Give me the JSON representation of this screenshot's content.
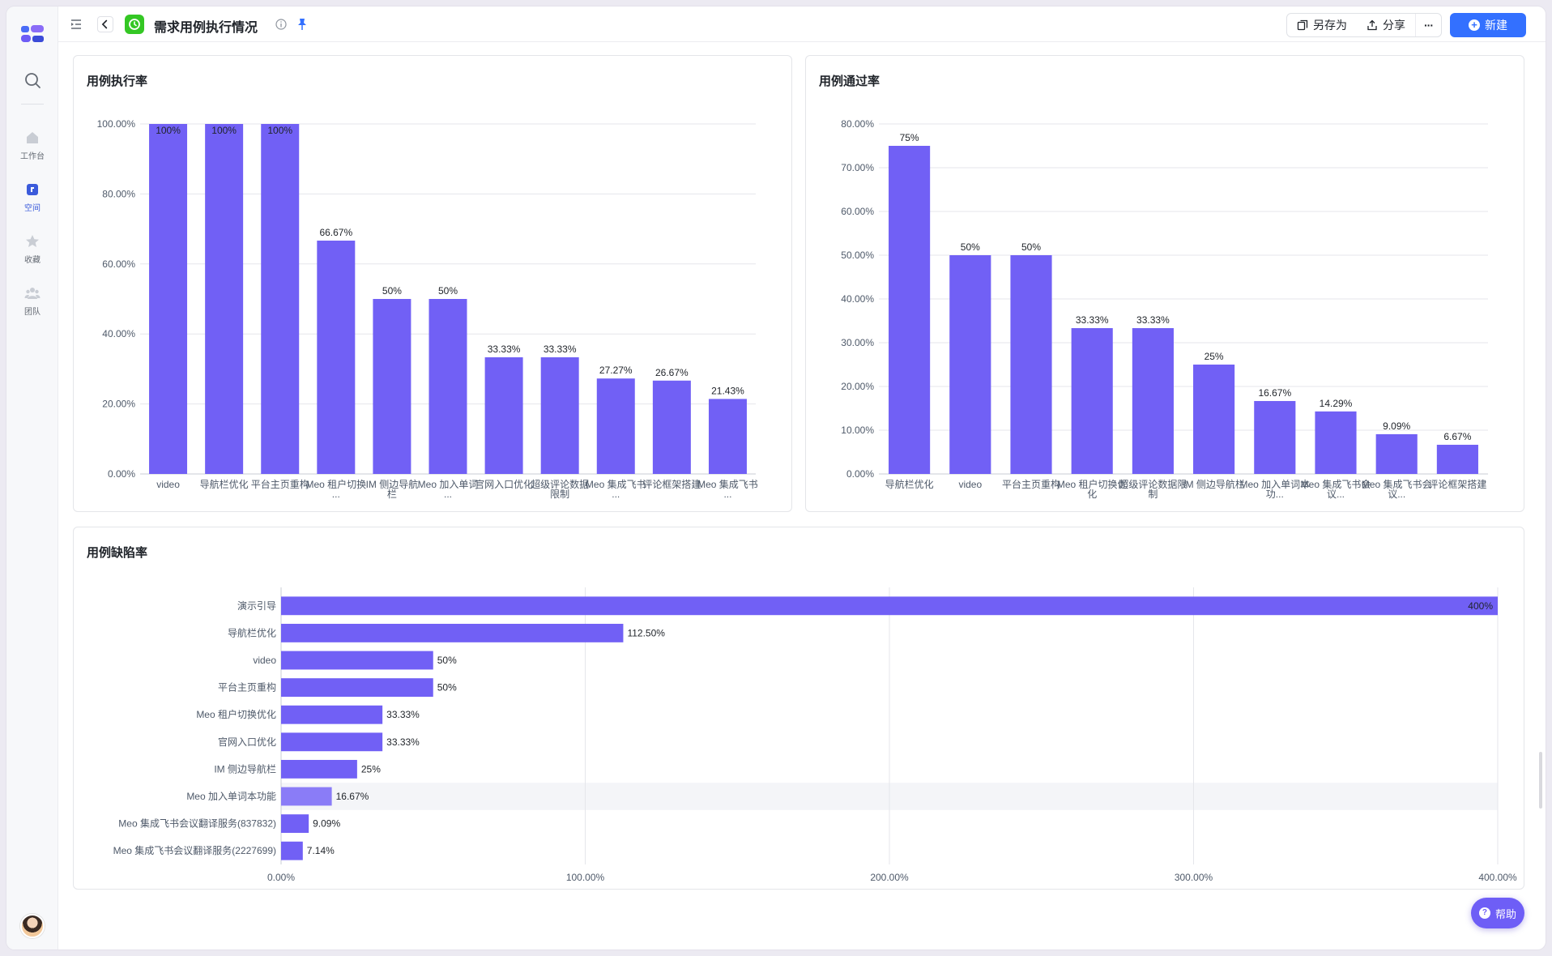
{
  "sidebar": {
    "items": [
      {
        "label": "工作台",
        "icon": "home-icon"
      },
      {
        "label": "空间",
        "icon": "space-icon"
      },
      {
        "label": "收藏",
        "icon": "star-icon"
      },
      {
        "label": "团队",
        "icon": "team-icon"
      }
    ]
  },
  "header": {
    "title": "需求用例执行情况",
    "save_as": "另存为",
    "share": "分享",
    "more": "···",
    "new": "新建"
  },
  "help_label": "帮助",
  "colors": {
    "bar": "#7160f5",
    "bar_hover": "#8a7cf7",
    "accent": "#3370ff",
    "app_icon": "#34c724"
  },
  "chart_data": [
    {
      "type": "bar",
      "title": "用例执行率",
      "categories": [
        "video",
        "导航栏优化",
        "平台主页重构",
        "Meo 租户切换...",
        "IM 侧边导航栏",
        "Meo 加入单词...",
        "官网入口优化",
        "超级评论数据限制",
        "Meo 集成飞书...",
        "评论框架搭建",
        "Meo 集成飞书..."
      ],
      "values": [
        100,
        100,
        100,
        66.67,
        50,
        50,
        33.33,
        33.33,
        27.27,
        26.67,
        21.43
      ],
      "value_labels": [
        "100%",
        "100%",
        "100%",
        "66.67%",
        "50%",
        "50%",
        "33.33%",
        "33.33%",
        "27.27%",
        "26.67%",
        "21.43%"
      ],
      "y_ticks": [
        "0.00%",
        "20.00%",
        "40.00%",
        "60.00%",
        "80.00%",
        "100.00%"
      ],
      "ylim": [
        0,
        100
      ],
      "grid": true
    },
    {
      "type": "bar",
      "title": "用例通过率",
      "categories": [
        "导航栏优化",
        "video",
        "平台主页重构",
        "Meo 租户切换优化",
        "超级评论数据限制",
        "IM 侧边导航栏",
        "Meo 加入单词本功...",
        "Meo 集成飞书会议...",
        "Meo 集成飞书会议...",
        "评论框架搭建"
      ],
      "values": [
        75,
        50,
        50,
        33.33,
        33.33,
        25,
        16.67,
        14.29,
        9.09,
        6.67
      ],
      "value_labels": [
        "75%",
        "50%",
        "50%",
        "33.33%",
        "33.33%",
        "25%",
        "16.67%",
        "14.29%",
        "9.09%",
        "6.67%"
      ],
      "y_ticks": [
        "0.00%",
        "10.00%",
        "20.00%",
        "30.00%",
        "40.00%",
        "50.00%",
        "60.00%",
        "70.00%",
        "80.00%"
      ],
      "ylim": [
        0,
        80
      ],
      "grid": true
    },
    {
      "type": "bar",
      "orientation": "horizontal",
      "title": "用例缺陷率",
      "categories": [
        "演示引导",
        "导航栏优化",
        "video",
        "平台主页重构",
        "Meo 租户切换优化",
        "官网入口优化",
        "IM 侧边导航栏",
        "Meo 加入单词本功能",
        "Meo 集成飞书会议翻译服务(837832)",
        "Meo 集成飞书会议翻译服务(2227699)"
      ],
      "values": [
        400,
        112.5,
        50,
        50,
        33.33,
        33.33,
        25,
        16.67,
        9.09,
        7.14
      ],
      "value_labels": [
        "400%",
        "112.50%",
        "50%",
        "50%",
        "33.33%",
        "33.33%",
        "25%",
        "16.67%",
        "9.09%",
        "7.14%"
      ],
      "x_ticks": [
        "0.00%",
        "100.00%",
        "200.00%",
        "300.00%",
        "400.00%"
      ],
      "xlim": [
        0,
        400
      ],
      "grid": true,
      "highlighted_index": 7
    }
  ]
}
